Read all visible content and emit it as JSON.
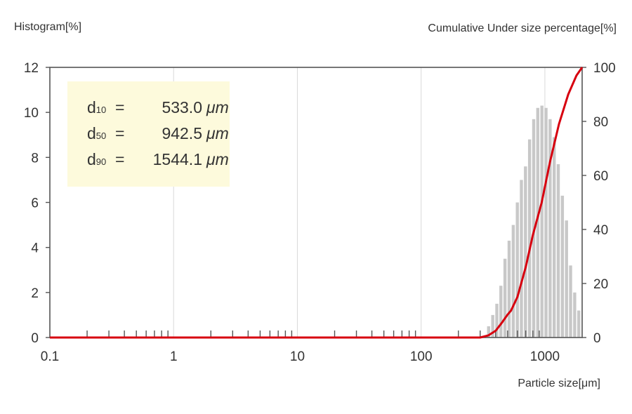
{
  "labels": {
    "left_axis_title": "Histogram[%]",
    "right_axis_title": "Cumulative Under size percentage[%]",
    "x_axis_title": "Particle size[μm]"
  },
  "annotation": {
    "lines": [
      {
        "symbol": "d",
        "sub": "10",
        "eq": "=",
        "value": "533.0",
        "unit": "μm"
      },
      {
        "symbol": "d",
        "sub": "50",
        "eq": "=",
        "value": "942.5",
        "unit": "μm"
      },
      {
        "symbol": "d",
        "sub": "90",
        "eq": "=",
        "value": "1544.1",
        "unit": "μm"
      }
    ]
  },
  "colors": {
    "bars": "#c8c8c8",
    "curve": "#d7000f",
    "axis": "#555555",
    "grid": "#d9d9d9",
    "annotation_bg": "#fdfadc"
  },
  "chart_data": {
    "type": "bar",
    "x_scale": "log",
    "xlim": [
      0.1,
      2000
    ],
    "x_ticks": [
      0.1,
      1,
      10,
      100,
      1000
    ],
    "x_tick_labels": [
      "0.1",
      "1",
      "10",
      "100",
      "1000"
    ],
    "ylim_left": [
      0,
      12
    ],
    "y_ticks_left": [
      "0",
      "2",
      "4",
      "6",
      "8",
      "10",
      "12"
    ],
    "ylim_right": [
      0,
      100
    ],
    "y_ticks_right": [
      "0",
      "20",
      "40",
      "60",
      "80",
      "100"
    ],
    "grid": "vertical",
    "series": [
      {
        "type": "bar",
        "axis": "left",
        "x": [
          351,
          379,
          409,
          441,
          476,
          514,
          555,
          599,
          646,
          697,
          752,
          812,
          876,
          946,
          1021,
          1102,
          1189,
          1283,
          1385,
          1495,
          1613,
          1741,
          1879
        ],
        "values": [
          0.5,
          1.0,
          1.5,
          2.3,
          3.5,
          4.3,
          5.0,
          6.0,
          7.0,
          7.6,
          8.8,
          9.7,
          10.2,
          10.3,
          10.2,
          9.7,
          8.9,
          7.7,
          6.3,
          5.2,
          3.2,
          2.0,
          1.2
        ]
      },
      {
        "type": "line",
        "axis": "right",
        "x": [
          300,
          350,
          400,
          450,
          500,
          533,
          600,
          700,
          800,
          942.5,
          1100,
          1300,
          1544.1,
          1800,
          2000
        ],
        "values": [
          0,
          0.8,
          2.5,
          5.5,
          8.5,
          10,
          15,
          26,
          38,
          50,
          65,
          79,
          90,
          97,
          100
        ]
      }
    ]
  }
}
